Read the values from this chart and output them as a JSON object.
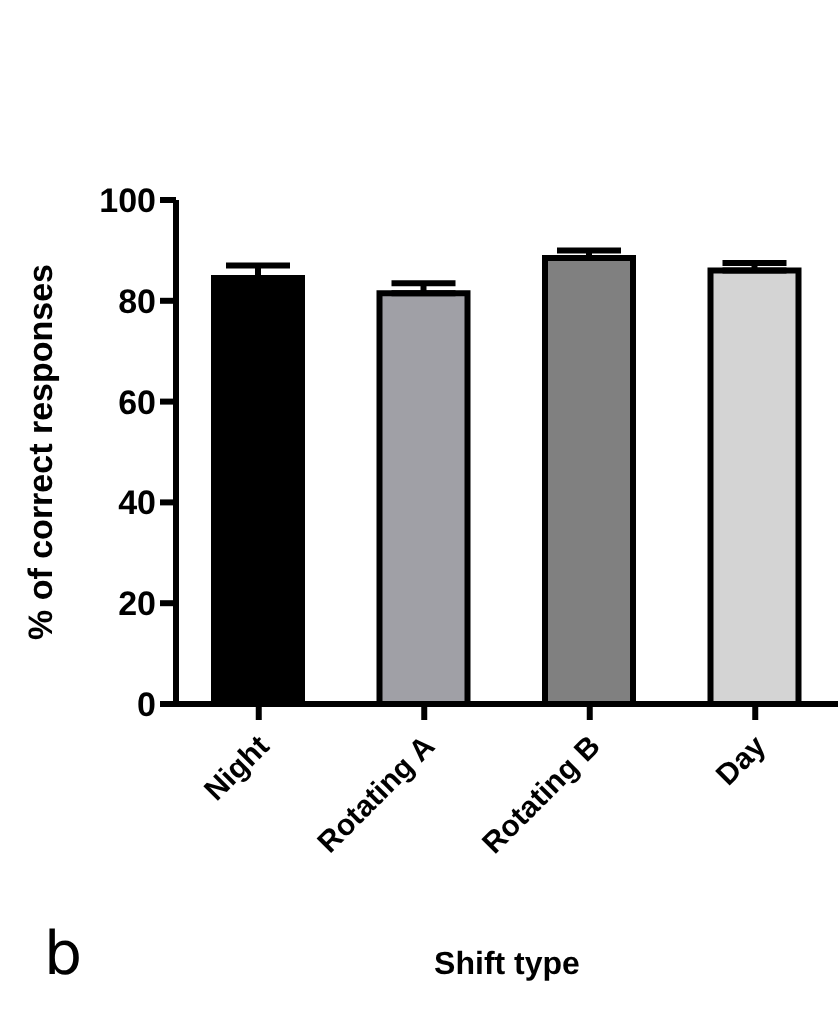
{
  "chart_data": {
    "type": "bar",
    "xlabel": "Shift type",
    "ylabel": "% of correct responses",
    "categories": [
      "Night",
      "Rotating A",
      "Rotating B",
      "Day"
    ],
    "values": [
      84.5,
      81.5,
      88.5,
      86
    ],
    "colors": [
      "#000000",
      "#a0a0a6",
      "#808080",
      "#d4d4d4"
    ],
    "errors": [
      [
        84.5,
        87
      ],
      [
        81.5,
        83.5
      ],
      [
        88.5,
        90
      ],
      [
        86,
        87.5
      ]
    ],
    "ylim": [
      0,
      100
    ],
    "yticks": [
      0,
      20,
      40,
      60,
      80,
      100
    ],
    "grid": false,
    "annotations": [
      "b"
    ]
  }
}
